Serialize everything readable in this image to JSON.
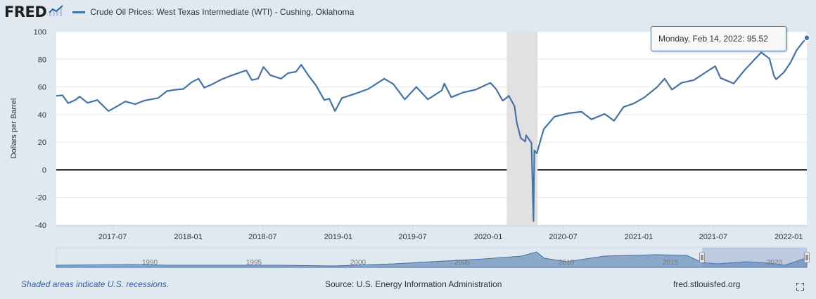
{
  "header": {
    "logo_text": "FRED",
    "series_title": "Crude Oil Prices: West Texas Intermediate (WTI) - Cushing, Oklahoma",
    "series_color": "#4572a7"
  },
  "tooltip": {
    "date": "Monday, Feb 14, 2022:",
    "value": "95.52"
  },
  "footer": {
    "recession_note": "Shaded areas indicate U.S. recessions.",
    "source": "Source: U.S. Energy Information Administration",
    "site": "fred.stlouisfed.org"
  },
  "icons": {
    "fullscreen": "fullscreen-icon",
    "logo_graph": "fred-graph-icon"
  },
  "chart_data": {
    "type": "line",
    "ylabel": "Dollars per Barrel",
    "ylim": [
      -40,
      100
    ],
    "yticks": [
      100,
      80,
      60,
      40,
      20,
      0,
      -20,
      -40
    ],
    "xlim": [
      "2017-02-14",
      "2022-02-14"
    ],
    "xticks": [
      "2017-07",
      "2018-01",
      "2018-07",
      "2019-01",
      "2019-07",
      "2020-01",
      "2020-07",
      "2021-01",
      "2021-07",
      "2022-01"
    ],
    "grid": true,
    "recession": [
      "2020-02-15",
      "2020-04-30"
    ],
    "series": [
      {
        "name": "Crude Oil Prices: West Texas Intermediate (WTI) - Cushing, Oklahoma",
        "color": "#4572a7",
        "points": [
          [
            "2017-02-14",
            53.5
          ],
          [
            "2017-03-01",
            54.0
          ],
          [
            "2017-03-15",
            48.3
          ],
          [
            "2017-04-01",
            50.5
          ],
          [
            "2017-04-12",
            53.0
          ],
          [
            "2017-05-01",
            48.5
          ],
          [
            "2017-05-25",
            50.5
          ],
          [
            "2017-06-21",
            42.5
          ],
          [
            "2017-07-15",
            46.5
          ],
          [
            "2017-08-01",
            49.5
          ],
          [
            "2017-08-25",
            47.5
          ],
          [
            "2017-09-15",
            50.0
          ],
          [
            "2017-10-01",
            51.0
          ],
          [
            "2017-10-20",
            52.0
          ],
          [
            "2017-11-10",
            57.0
          ],
          [
            "2017-12-01",
            58.0
          ],
          [
            "2017-12-20",
            58.5
          ],
          [
            "2018-01-10",
            63.5
          ],
          [
            "2018-01-26",
            66.0
          ],
          [
            "2018-02-09",
            59.5
          ],
          [
            "2018-03-01",
            62.0
          ],
          [
            "2018-03-23",
            65.5
          ],
          [
            "2018-04-18",
            68.5
          ],
          [
            "2018-05-22",
            72.0
          ],
          [
            "2018-06-05",
            65.0
          ],
          [
            "2018-06-20",
            66.0
          ],
          [
            "2018-07-03",
            74.5
          ],
          [
            "2018-07-20",
            68.5
          ],
          [
            "2018-08-15",
            66.0
          ],
          [
            "2018-09-01",
            70.0
          ],
          [
            "2018-09-20",
            71.0
          ],
          [
            "2018-10-03",
            76.0
          ],
          [
            "2018-10-20",
            68.5
          ],
          [
            "2018-11-08",
            61.0
          ],
          [
            "2018-11-28",
            50.5
          ],
          [
            "2018-12-10",
            51.5
          ],
          [
            "2018-12-24",
            42.5
          ],
          [
            "2019-01-10",
            52.0
          ],
          [
            "2019-02-15",
            55.5
          ],
          [
            "2019-03-15",
            58.5
          ],
          [
            "2019-04-23",
            66.0
          ],
          [
            "2019-05-15",
            62.0
          ],
          [
            "2019-06-12",
            51.0
          ],
          [
            "2019-07-10",
            60.0
          ],
          [
            "2019-08-07",
            51.0
          ],
          [
            "2019-09-10",
            57.5
          ],
          [
            "2019-09-16",
            62.5
          ],
          [
            "2019-10-03",
            52.5
          ],
          [
            "2019-11-01",
            56.0
          ],
          [
            "2019-12-01",
            58.0
          ],
          [
            "2020-01-06",
            63.0
          ],
          [
            "2020-01-20",
            58.5
          ],
          [
            "2020-02-05",
            50.0
          ],
          [
            "2020-02-20",
            53.5
          ],
          [
            "2020-03-05",
            46.0
          ],
          [
            "2020-03-10",
            34.5
          ],
          [
            "2020-03-20",
            23.0
          ],
          [
            "2020-03-31",
            20.5
          ],
          [
            "2020-04-02",
            25.0
          ],
          [
            "2020-04-15",
            19.5
          ],
          [
            "2020-04-20",
            -37.0
          ],
          [
            "2020-04-22",
            14.0
          ],
          [
            "2020-04-28",
            12.0
          ],
          [
            "2020-05-15",
            29.5
          ],
          [
            "2020-06-10",
            38.5
          ],
          [
            "2020-07-15",
            41.0
          ],
          [
            "2020-08-15",
            42.0
          ],
          [
            "2020-09-08",
            36.5
          ],
          [
            "2020-10-10",
            40.5
          ],
          [
            "2020-11-02",
            35.5
          ],
          [
            "2020-11-25",
            45.5
          ],
          [
            "2020-12-20",
            48.0
          ],
          [
            "2021-01-15",
            52.5
          ],
          [
            "2021-02-15",
            60.0
          ],
          [
            "2021-03-05",
            66.0
          ],
          [
            "2021-03-23",
            58.0
          ],
          [
            "2021-04-15",
            63.0
          ],
          [
            "2021-05-15",
            65.0
          ],
          [
            "2021-06-15",
            71.0
          ],
          [
            "2021-07-06",
            75.0
          ],
          [
            "2021-07-19",
            66.5
          ],
          [
            "2021-08-20",
            62.5
          ],
          [
            "2021-09-15",
            72.0
          ],
          [
            "2021-10-26",
            85.0
          ],
          [
            "2021-11-15",
            80.5
          ],
          [
            "2021-11-26",
            68.0
          ],
          [
            "2021-12-01",
            65.5
          ],
          [
            "2021-12-20",
            70.5
          ],
          [
            "2022-01-05",
            77.5
          ],
          [
            "2022-01-20",
            86.5
          ],
          [
            "2022-02-04",
            92.3
          ],
          [
            "2022-02-14",
            95.52
          ]
        ]
      }
    ],
    "navigator": {
      "labels": [
        "1990",
        "1995",
        "2000",
        "2005",
        "2010",
        "2015",
        "2020"
      ]
    }
  }
}
